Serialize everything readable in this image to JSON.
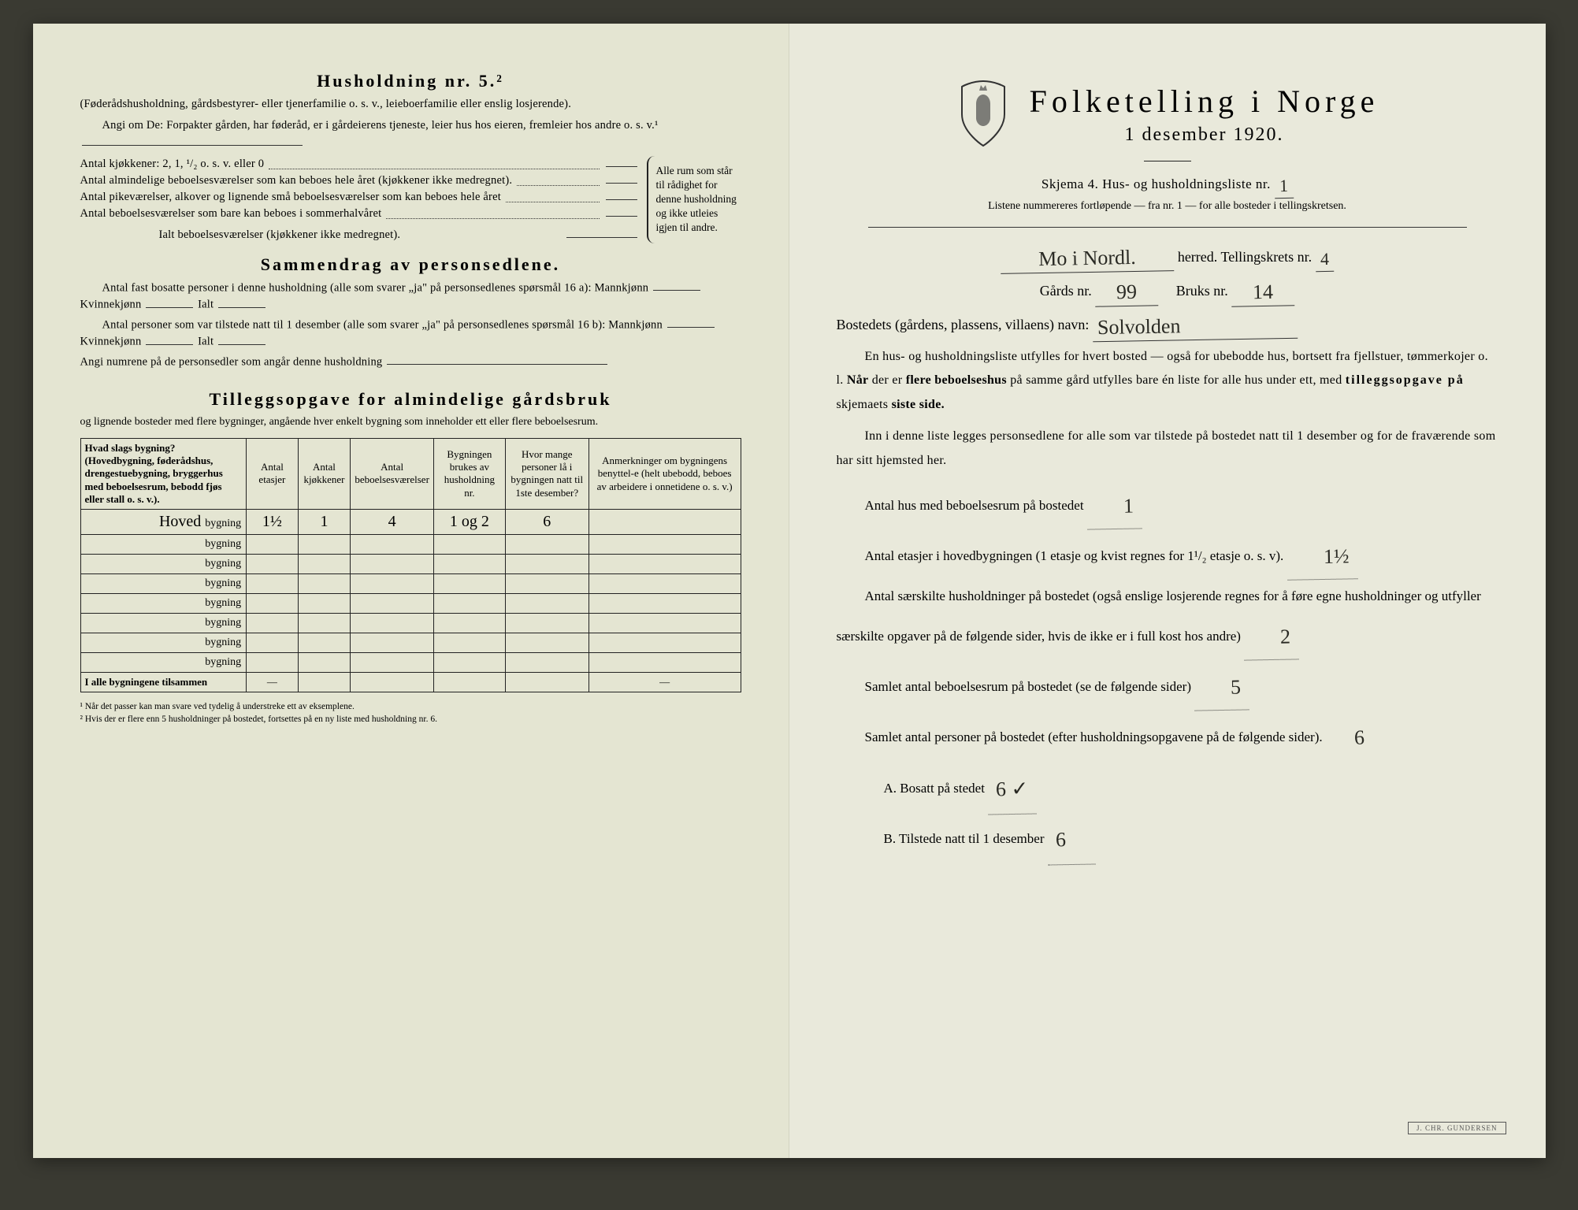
{
  "leftPage": {
    "heading5": "Husholdning nr. 5.²",
    "heading5_sub": "(Føderådshusholdning, gårdsbestyrer- eller tjenerfamilie o. s. v., leieboerfamilie eller enslig losjerende).",
    "angi": "Angi om De: Forpakter gården, har føderåd, er i gårdeierens tjeneste, leier hus hos eieren, fremleier hos andre o. s. v.¹",
    "kjokken_label": "Antal kjøkkener: 2, 1, ¹/₂ o. s. v. eller 0",
    "alm_label": "Antal almindelige beboelsesværelser som kan beboes hele året (kjøkkener ikke medregnet).",
    "pike_label": "Antal pikeværelser, alkover og lignende små beboelsesværelser som kan beboes hele året",
    "sommer_label": "Antal beboelsesværelser som bare kan beboes i sommerhalvåret",
    "ialt_label": "Ialt beboelsesværelser (kjøkkener ikke medregnet).",
    "brace_text": "Alle rum som står til rådighet for denne husholdning og ikke utleies igjen til andre.",
    "sammendrag_title": "Sammendrag av personsedlene.",
    "sammen_p1": "Antal fast bosatte personer i denne husholdning (alle som svarer „ja\" på personsedlenes spørsmål 16 a): Mannkjønn",
    "sammen_kv": "Kvinnekjønn",
    "sammen_ialt": "Ialt",
    "sammen_p2": "Antal personer som var tilstede natt til 1 desember (alle som svarer „ja\" på personsedlenes spørsmål 16 b): Mannkjønn",
    "sammen_p3": "Angi numrene på de personsedler som angår denne husholdning",
    "tillegg_title": "Tilleggsopgave for almindelige gårdsbruk",
    "tillegg_desc": "og lignende bosteder med flere bygninger, angående hver enkelt bygning som inneholder ett eller flere beboelsesrum.",
    "table": {
      "headers": [
        "Hvad slags bygning?\n(Hovedbygning, føderådshus, drengestuebygning, bryggerhus med beboelsesrum, bebodd fjøs eller stall o. s. v.).",
        "Antal etasjer",
        "Antal kjøkkener",
        "Antal beboelsesværelser",
        "Bygningen brukes av husholdning nr.",
        "Hvor mange personer lå i bygningen natt til 1ste desember?",
        "Anmerkninger om bygningens benyttel-e (helt ubebodd, beboes av arbeidere i onnetidene o. s. v.)"
      ],
      "row_suffix": "bygning",
      "row1_prefix": "Hoved",
      "rows": [
        [
          "1½",
          "1",
          "4",
          "1 og 2",
          "6",
          ""
        ],
        [
          "",
          "",
          "",
          "",
          "",
          ""
        ],
        [
          "",
          "",
          "",
          "",
          "",
          ""
        ],
        [
          "",
          "",
          "",
          "",
          "",
          ""
        ],
        [
          "",
          "",
          "",
          "",
          "",
          ""
        ],
        [
          "",
          "",
          "",
          "",
          "",
          ""
        ],
        [
          "",
          "",
          "",
          "",
          "",
          ""
        ],
        [
          "",
          "",
          "",
          "",
          "",
          ""
        ]
      ],
      "total_label": "I alle bygningene tilsammen",
      "total_cells": [
        "—",
        "",
        "",
        "",
        "",
        "—"
      ]
    },
    "footnote1": "¹  Når det passer kan man svare ved tydelig å understreke ett av eksemplene.",
    "footnote2": "²  Hvis der er flere enn 5 husholdninger på bostedet, fortsettes på en ny liste med husholdning nr. 6."
  },
  "rightPage": {
    "title": "Folketelling  i  Norge",
    "date": "1 desember 1920.",
    "skjema_pre": "Skjema 4.   Hus- og husholdningsliste nr.",
    "skjema_nr": "1",
    "listnote": "Listene nummereres fortløpende — fra nr. 1 — for alle bosteder i tellingskretsen.",
    "herred_hand": "Mo i Nordl.",
    "herred_label": "herred.   Tellingskrets nr.",
    "krets_nr": "4",
    "gards_label": "Gårds nr.",
    "gards_nr": "99",
    "bruks_label": "Bruks nr.",
    "bruks_nr": "14",
    "bosted_label": "Bostedets (gårdens, plassens, villaens) navn:",
    "bosted_hand": "Solvolden",
    "para1": "En hus- og husholdningsliste utfylles for hvert bosted — også for ubebodde hus, bortsett fra fjellstuer, tømmerkojer o. l.  Når der er flere beboelseshus på samme gård utfylles bare én liste for alle hus under ett, med tilleggsopgave på skjemaets siste side.",
    "para2": "Inn i denne liste legges personsedlene for alle som var tilstede på bostedet natt til 1 desember og for de fraværende som har sitt hjemsted her.",
    "q1": "Antal hus med beboelsesrum på bostedet",
    "a1": "1",
    "q2a": "Antal etasjer i hovedbygningen (1 etasje og kvist regnes for 1¹/₂ etasje o. s. v).",
    "a2": "1½",
    "q3": "Antal særskilte husholdninger på bostedet (også enslige losjerende regnes for å føre egne husholdninger og utfyller særskilte opgaver på de følgende sider, hvis de ikke er i full kost hos andre)",
    "a3": "2",
    "q4": "Samlet antal beboelsesrum på bostedet (se de følgende sider)",
    "a4": "5",
    "q5": "Samlet antal personer på bostedet (efter husholdningsopgavene på de følgende sider).",
    "a5": "6",
    "qA": "A.  Bosatt på stedet",
    "aA": "6   ✓",
    "qB": "B.  Tilstede natt til 1 desember",
    "aB": "6",
    "stamp": "J. CHR. GUNDERSEN"
  },
  "colors": {
    "paper": "#e6e6d4",
    "ink": "#222222",
    "hand": "#2a2a24"
  }
}
